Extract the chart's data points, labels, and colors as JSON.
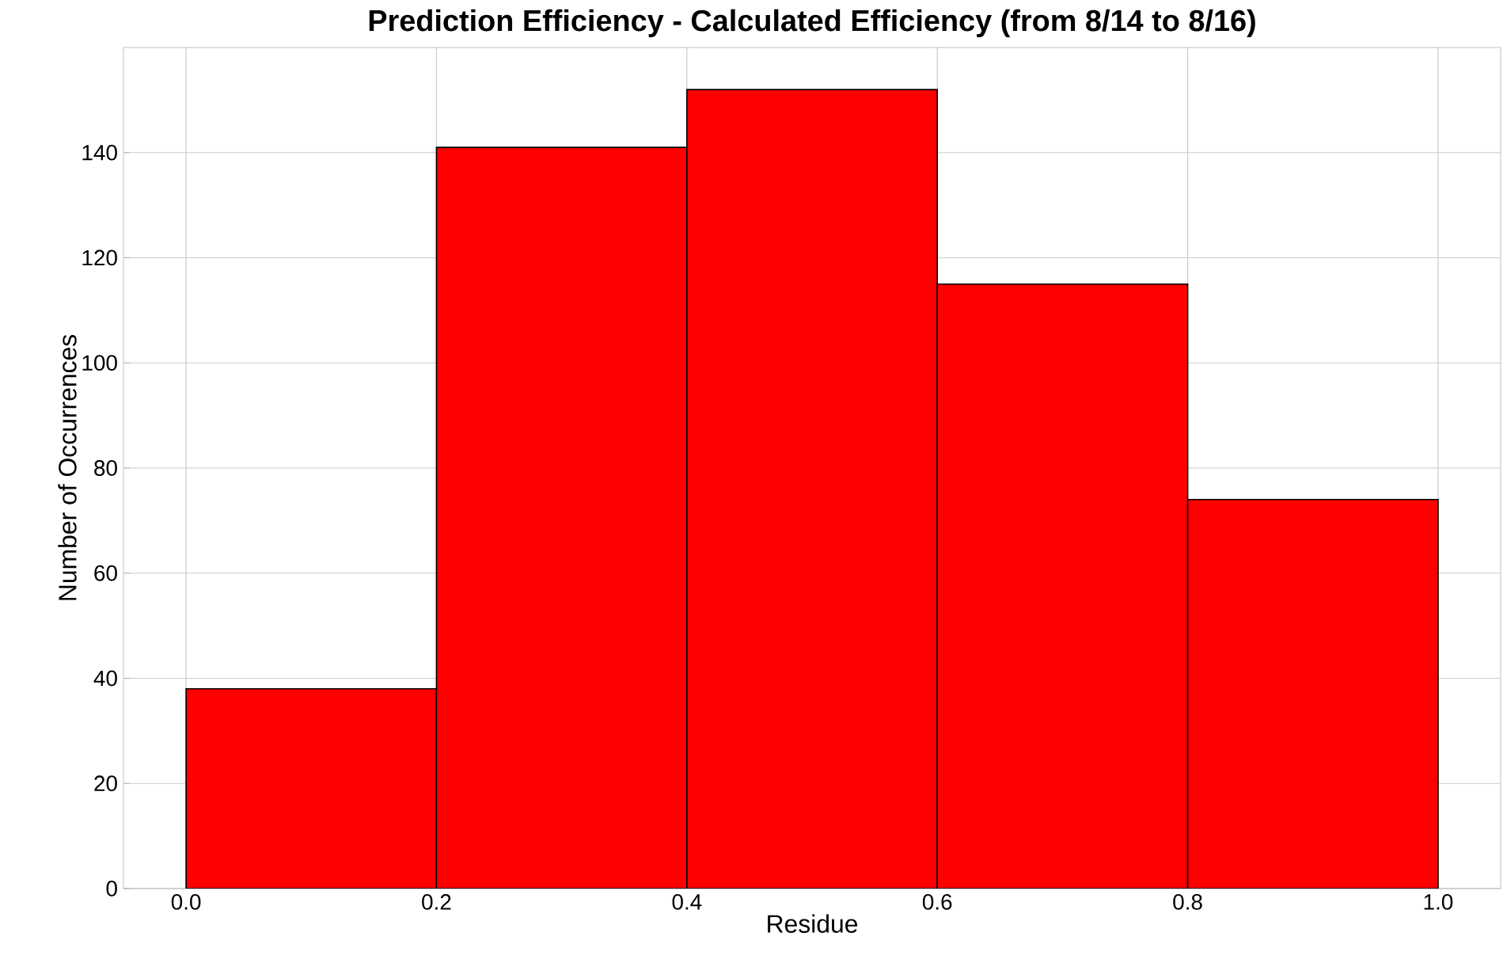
{
  "chart_data": {
    "type": "histogram",
    "title": "Prediction Efficiency - Calculated Efficiency (from 8/14 to 8/16)",
    "xlabel": "Residue",
    "ylabel": "Number of Occurrences",
    "bins": [
      0.0,
      0.2,
      0.4,
      0.6,
      0.8,
      1.0
    ],
    "values": [
      38,
      141,
      152,
      115,
      74
    ],
    "color": "#ff0000",
    "xlim": [
      -0.05,
      1.05
    ],
    "ylim": [
      0,
      160
    ],
    "xticks": [
      {
        "value": 0.0,
        "label": "0.0"
      },
      {
        "value": 0.2,
        "label": "0.2"
      },
      {
        "value": 0.4,
        "label": "0.4"
      },
      {
        "value": 0.6,
        "label": "0.6"
      },
      {
        "value": 0.8,
        "label": "0.8"
      },
      {
        "value": 1.0,
        "label": "1.0"
      }
    ],
    "yticks": [
      0,
      20,
      40,
      60,
      80,
      100,
      120,
      140
    ],
    "grid": true
  }
}
